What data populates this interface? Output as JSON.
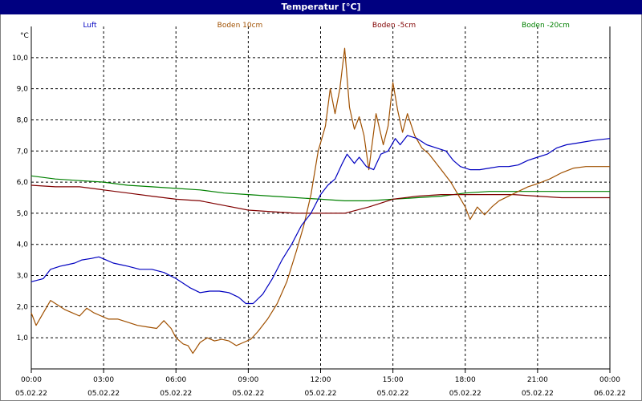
{
  "window": {
    "title": "Temperatur [°C]"
  },
  "chart_data": {
    "type": "line",
    "title": "Temperatur [°C]",
    "ylabel": "°C",
    "ylim": [
      0,
      11
    ],
    "xlim": [
      0,
      24
    ],
    "grid": true,
    "legend_placement": "top",
    "y_ticks": [
      "1,0",
      "2,0",
      "3,0",
      "4,0",
      "5,0",
      "6,0",
      "7,0",
      "8,0",
      "9,0",
      "10,0"
    ],
    "x_ticks": [
      {
        "time": "00:00",
        "date": "05.02.22"
      },
      {
        "time": "03:00",
        "date": "05.02.22"
      },
      {
        "time": "06:00",
        "date": "05.02.22"
      },
      {
        "time": "09:00",
        "date": "05.02.22"
      },
      {
        "time": "12:00",
        "date": "05.02.22"
      },
      {
        "time": "15:00",
        "date": "05.02.22"
      },
      {
        "time": "18:00",
        "date": "05.02.22"
      },
      {
        "time": "21:00",
        "date": "05.02.22"
      },
      {
        "time": "00:00",
        "date": "06.02.22"
      }
    ],
    "series": [
      {
        "name": "Luft",
        "color": "#0000c0",
        "points": [
          [
            0,
            2.8
          ],
          [
            0.5,
            2.9
          ],
          [
            0.8,
            3.2
          ],
          [
            1.2,
            3.3
          ],
          [
            1.5,
            3.35
          ],
          [
            1.8,
            3.4
          ],
          [
            2.1,
            3.5
          ],
          [
            2.5,
            3.55
          ],
          [
            2.8,
            3.6
          ],
          [
            3.1,
            3.5
          ],
          [
            3.4,
            3.4
          ],
          [
            3.7,
            3.35
          ],
          [
            4.0,
            3.3
          ],
          [
            4.5,
            3.2
          ],
          [
            5.0,
            3.2
          ],
          [
            5.5,
            3.1
          ],
          [
            6.0,
            2.9
          ],
          [
            6.3,
            2.75
          ],
          [
            6.6,
            2.6
          ],
          [
            7.0,
            2.45
          ],
          [
            7.4,
            2.5
          ],
          [
            7.8,
            2.5
          ],
          [
            8.2,
            2.45
          ],
          [
            8.6,
            2.3
          ],
          [
            8.9,
            2.1
          ],
          [
            9.2,
            2.1
          ],
          [
            9.6,
            2.4
          ],
          [
            10.0,
            2.9
          ],
          [
            10.4,
            3.5
          ],
          [
            10.8,
            4.0
          ],
          [
            11.2,
            4.6
          ],
          [
            11.6,
            5.0
          ],
          [
            12.0,
            5.6
          ],
          [
            12.3,
            5.9
          ],
          [
            12.6,
            6.1
          ],
          [
            12.9,
            6.6
          ],
          [
            13.1,
            6.9
          ],
          [
            13.4,
            6.6
          ],
          [
            13.6,
            6.8
          ],
          [
            13.9,
            6.5
          ],
          [
            14.2,
            6.4
          ],
          [
            14.5,
            6.9
          ],
          [
            14.8,
            7.0
          ],
          [
            15.1,
            7.4
          ],
          [
            15.3,
            7.2
          ],
          [
            15.6,
            7.5
          ],
          [
            16.0,
            7.4
          ],
          [
            16.4,
            7.2
          ],
          [
            16.8,
            7.1
          ],
          [
            17.2,
            7.0
          ],
          [
            17.5,
            6.7
          ],
          [
            17.8,
            6.5
          ],
          [
            18.2,
            6.4
          ],
          [
            18.6,
            6.4
          ],
          [
            19.0,
            6.45
          ],
          [
            19.4,
            6.5
          ],
          [
            19.8,
            6.5
          ],
          [
            20.2,
            6.55
          ],
          [
            20.6,
            6.7
          ],
          [
            21.0,
            6.8
          ],
          [
            21.4,
            6.9
          ],
          [
            21.8,
            7.1
          ],
          [
            22.2,
            7.2
          ],
          [
            22.6,
            7.25
          ],
          [
            23.0,
            7.3
          ],
          [
            23.4,
            7.35
          ],
          [
            24.0,
            7.4
          ]
        ]
      },
      {
        "name": "Boden 10cm",
        "color": "#a05000",
        "points": [
          [
            0,
            1.8
          ],
          [
            0.2,
            1.4
          ],
          [
            0.5,
            1.8
          ],
          [
            0.8,
            2.2
          ],
          [
            1.1,
            2.05
          ],
          [
            1.4,
            1.9
          ],
          [
            1.7,
            1.8
          ],
          [
            2.0,
            1.7
          ],
          [
            2.3,
            1.95
          ],
          [
            2.6,
            1.8
          ],
          [
            2.9,
            1.7
          ],
          [
            3.2,
            1.6
          ],
          [
            3.6,
            1.6
          ],
          [
            4.0,
            1.5
          ],
          [
            4.4,
            1.4
          ],
          [
            4.8,
            1.35
          ],
          [
            5.2,
            1.3
          ],
          [
            5.5,
            1.55
          ],
          [
            5.8,
            1.3
          ],
          [
            6.0,
            1.0
          ],
          [
            6.3,
            0.8
          ],
          [
            6.5,
            0.75
          ],
          [
            6.7,
            0.5
          ],
          [
            7.0,
            0.85
          ],
          [
            7.3,
            1.0
          ],
          [
            7.6,
            0.9
          ],
          [
            7.9,
            0.95
          ],
          [
            8.2,
            0.9
          ],
          [
            8.5,
            0.75
          ],
          [
            8.8,
            0.85
          ],
          [
            9.1,
            0.95
          ],
          [
            9.4,
            1.2
          ],
          [
            9.8,
            1.6
          ],
          [
            10.2,
            2.1
          ],
          [
            10.6,
            2.8
          ],
          [
            11.0,
            3.8
          ],
          [
            11.3,
            4.6
          ],
          [
            11.6,
            5.6
          ],
          [
            11.9,
            7.0
          ],
          [
            12.2,
            7.8
          ],
          [
            12.4,
            9.0
          ],
          [
            12.6,
            8.2
          ],
          [
            12.8,
            9.0
          ],
          [
            13.0,
            10.3
          ],
          [
            13.2,
            8.4
          ],
          [
            13.4,
            7.7
          ],
          [
            13.6,
            8.1
          ],
          [
            13.8,
            7.5
          ],
          [
            14.0,
            6.4
          ],
          [
            14.3,
            8.2
          ],
          [
            14.6,
            7.2
          ],
          [
            14.8,
            7.8
          ],
          [
            15.0,
            9.2
          ],
          [
            15.2,
            8.3
          ],
          [
            15.4,
            7.6
          ],
          [
            15.6,
            8.2
          ],
          [
            15.9,
            7.5
          ],
          [
            16.2,
            7.1
          ],
          [
            16.5,
            6.9
          ],
          [
            16.8,
            6.6
          ],
          [
            17.1,
            6.3
          ],
          [
            17.4,
            6.0
          ],
          [
            17.7,
            5.6
          ],
          [
            18.0,
            5.2
          ],
          [
            18.2,
            4.8
          ],
          [
            18.5,
            5.2
          ],
          [
            18.8,
            4.95
          ],
          [
            19.1,
            5.2
          ],
          [
            19.4,
            5.4
          ],
          [
            19.8,
            5.55
          ],
          [
            20.2,
            5.7
          ],
          [
            20.6,
            5.85
          ],
          [
            21.0,
            5.95
          ],
          [
            21.5,
            6.1
          ],
          [
            22.0,
            6.3
          ],
          [
            22.5,
            6.45
          ],
          [
            23.0,
            6.5
          ],
          [
            24.0,
            6.5
          ]
        ]
      },
      {
        "name": "Boden -5cm",
        "color": "#800000",
        "points": [
          [
            0,
            5.9
          ],
          [
            1,
            5.85
          ],
          [
            2,
            5.85
          ],
          [
            3,
            5.75
          ],
          [
            4,
            5.65
          ],
          [
            5,
            5.55
          ],
          [
            6,
            5.45
          ],
          [
            7,
            5.4
          ],
          [
            8,
            5.25
          ],
          [
            9,
            5.1
          ],
          [
            10,
            5.05
          ],
          [
            11,
            5.0
          ],
          [
            12,
            5.0
          ],
          [
            13,
            5.0
          ],
          [
            14,
            5.2
          ],
          [
            15,
            5.45
          ],
          [
            16,
            5.55
          ],
          [
            17,
            5.6
          ],
          [
            18,
            5.6
          ],
          [
            19,
            5.6
          ],
          [
            20,
            5.6
          ],
          [
            21,
            5.55
          ],
          [
            22,
            5.5
          ],
          [
            23,
            5.5
          ],
          [
            24,
            5.5
          ]
        ]
      },
      {
        "name": "Boden -20cm",
        "color": "#008000",
        "points": [
          [
            0,
            6.2
          ],
          [
            1,
            6.1
          ],
          [
            2,
            6.05
          ],
          [
            3,
            6.0
          ],
          [
            4,
            5.9
          ],
          [
            5,
            5.85
          ],
          [
            6,
            5.8
          ],
          [
            7,
            5.75
          ],
          [
            8,
            5.65
          ],
          [
            9,
            5.6
          ],
          [
            10,
            5.55
          ],
          [
            11,
            5.5
          ],
          [
            12,
            5.45
          ],
          [
            13,
            5.4
          ],
          [
            14,
            5.4
          ],
          [
            15,
            5.45
          ],
          [
            16,
            5.5
          ],
          [
            17,
            5.55
          ],
          [
            18,
            5.65
          ],
          [
            19,
            5.7
          ],
          [
            20,
            5.7
          ],
          [
            21,
            5.7
          ],
          [
            22,
            5.7
          ],
          [
            23,
            5.7
          ],
          [
            24,
            5.7
          ]
        ]
      }
    ]
  }
}
